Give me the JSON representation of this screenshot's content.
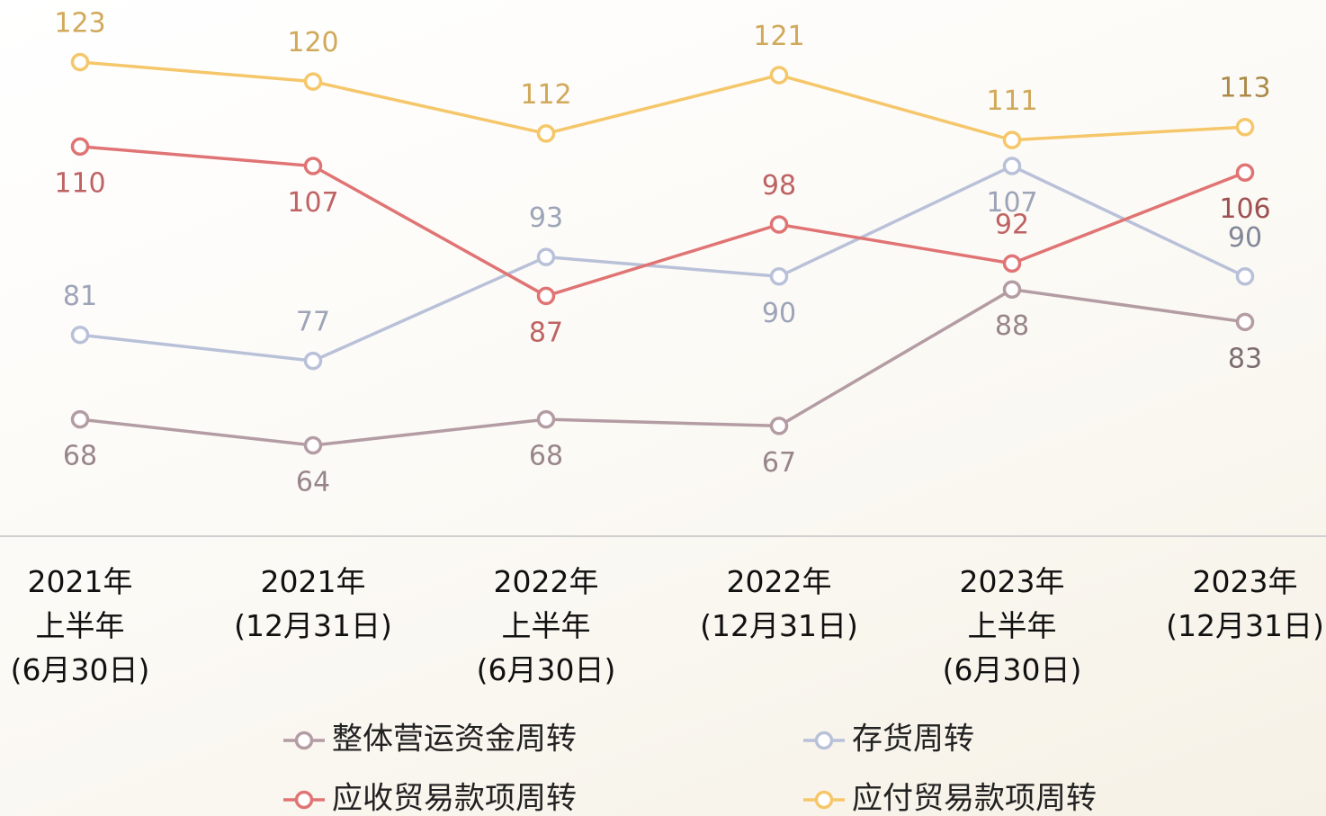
{
  "chart_data": {
    "type": "line",
    "categories": [
      "2021年\n上半年\n(6月30日)",
      "2021年\n(12月31日)",
      "2022年\n上半年\n(6月30日)",
      "2022年\n(12月31日)",
      "2023年\n上半年\n(6月30日)",
      "2023年\n(12月31日)"
    ],
    "series": [
      {
        "name": "整体营运资金周转",
        "color": "#b39ca3",
        "values": [
          68,
          64,
          68,
          67,
          88,
          83
        ]
      },
      {
        "name": "存货周转",
        "color": "#b9c1d9",
        "values": [
          81,
          77,
          93,
          90,
          107,
          90
        ]
      },
      {
        "name": "应收贸易款项周转",
        "color": "#e07474",
        "values": [
          110,
          107,
          87,
          98,
          92,
          106
        ]
      },
      {
        "name": "应付贸易款项周转",
        "color": "#f5c76a",
        "values": [
          123,
          120,
          112,
          121,
          111,
          113
        ]
      }
    ]
  }
}
